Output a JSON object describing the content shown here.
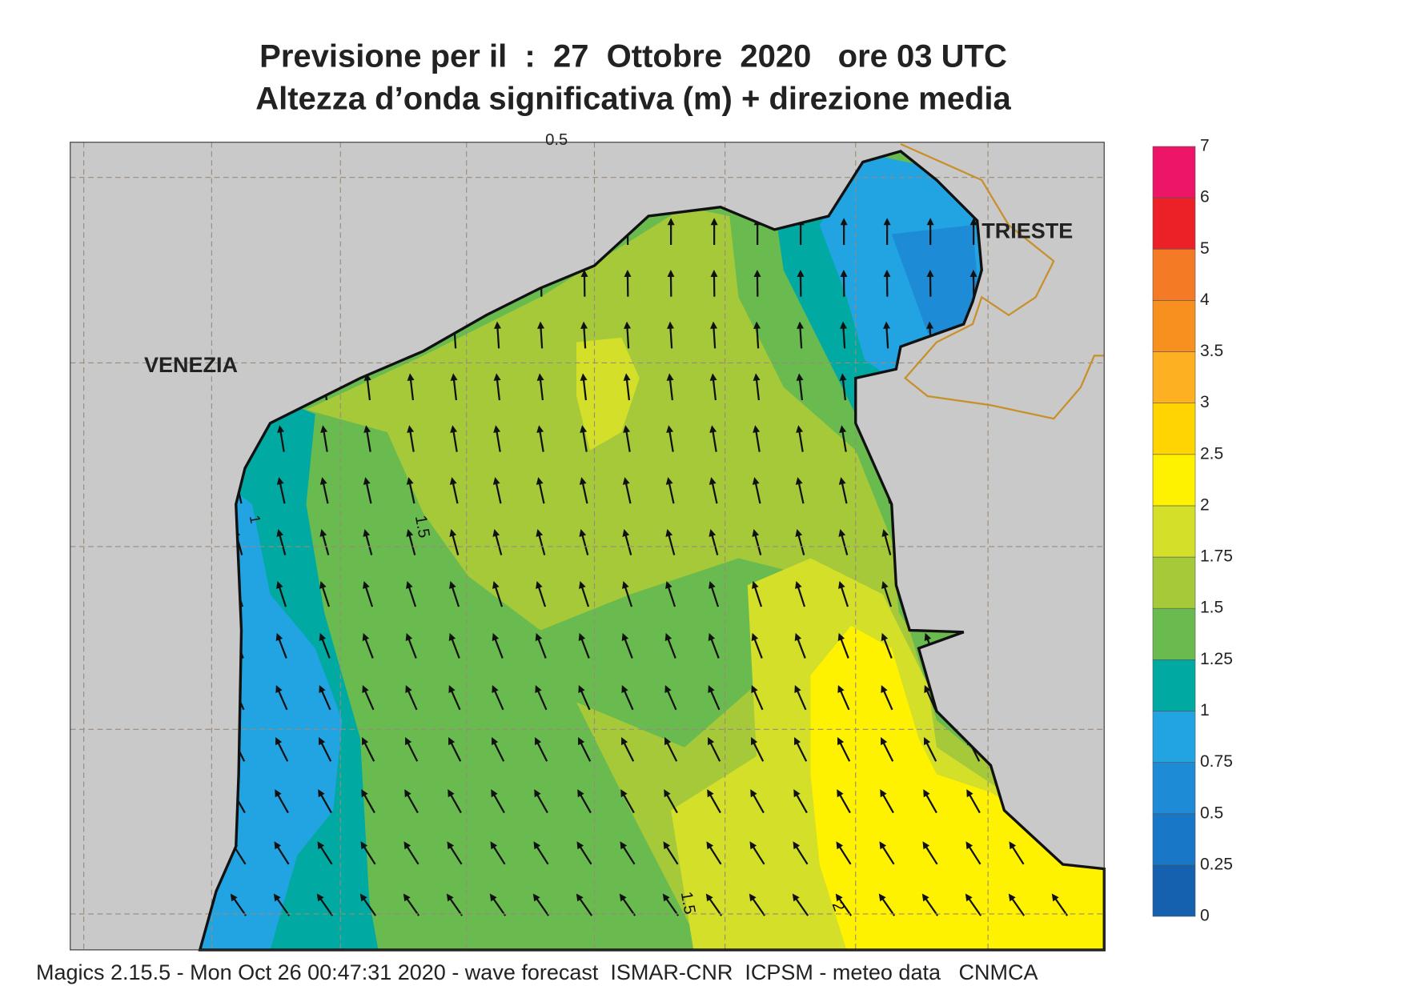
{
  "header": {
    "title": "Previsione per il  :  27  Ottobre  2020   ore 03 UTC",
    "subtitle": "Altezza d’onda significativa (m) + direzione media"
  },
  "places": [
    "VENEZIA",
    "TRIESTE"
  ],
  "contour_labels": [
    "0.5",
    "1",
    "1.5",
    "1.5",
    "2"
  ],
  "legend": {
    "levels": [
      0,
      0.25,
      0.5,
      0.75,
      1,
      1.25,
      1.5,
      1.75,
      2,
      2.5,
      3,
      3.5,
      4,
      5,
      6,
      7
    ],
    "colors": [
      "#1561b0",
      "#1877c6",
      "#1e8bd6",
      "#22a3e2",
      "#00aaa2",
      "#6abb4f",
      "#a6c93a",
      "#d4df2a",
      "#fff200",
      "#ffd400",
      "#fdb022",
      "#f8901f",
      "#f47a25",
      "#ec2127",
      "#ec1568"
    ]
  },
  "footer": "Magics 2.15.5 - Mon Oct 26 00:47:31 2020 - wave forecast  ISMAR-CNR  ICPSM - meteo data   CNMCA"
}
